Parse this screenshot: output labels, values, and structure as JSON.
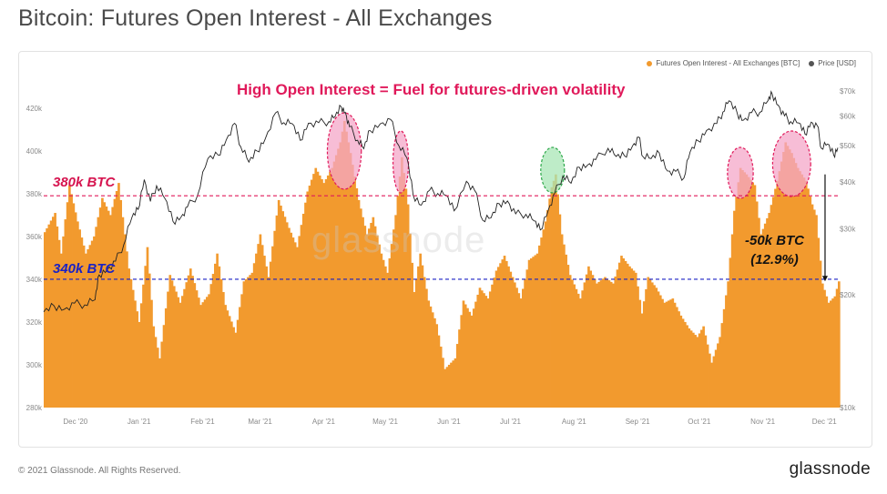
{
  "page": {
    "title": "Bitcoin: Futures Open Interest - All Exchanges",
    "copyright": "© 2021 Glassnode. All Rights Reserved.",
    "brand": "glassnode",
    "watermark": "glassnode"
  },
  "legend": {
    "oi_label": "Futures Open Interest - All Exchanges [BTC]",
    "price_label": "Price [USD]",
    "oi_color": "#f29a2e",
    "price_color": "#555555"
  },
  "annotations": {
    "headline": "High Open Interest = Fuel for futures-driven volatility",
    "level_380": "380k BTC",
    "level_340": "340k BTC",
    "drop_line1": "-50k BTC",
    "drop_line2": "(12.9%)"
  },
  "colors": {
    "bars": "#f29a2e",
    "price_line": "#222222",
    "headline": "#e0195a",
    "line_380": "#e0195a",
    "line_340": "#1a22c4",
    "highlight_pink": "#f4a7c8",
    "highlight_green": "#a8e6b5"
  },
  "chart_data": {
    "type": "bar",
    "x_axis": {
      "tick_labels": [
        "Dec '20",
        "Jan '21",
        "Feb '21",
        "Mar '21",
        "Apr '21",
        "May '21",
        "Jun '21",
        "Jul '21",
        "Aug '21",
        "Sep '21",
        "Oct '21",
        "Nov '21",
        "Dec '21"
      ],
      "tick_dates": [
        "2020-12-01",
        "2021-01-01",
        "2021-02-01",
        "2021-03-01",
        "2021-04-01",
        "2021-05-01",
        "2021-06-01",
        "2021-07-01",
        "2021-08-01",
        "2021-09-01",
        "2021-10-01",
        "2021-11-01",
        "2021-12-01"
      ],
      "range": [
        "2020-11-20",
        "2021-12-12"
      ]
    },
    "y_left": {
      "tick_labels": [
        "280k",
        "300k",
        "320k",
        "340k",
        "360k",
        "380k",
        "400k",
        "420k"
      ],
      "tick_values": [
        280000,
        300000,
        320000,
        340000,
        360000,
        380000,
        400000,
        420000
      ],
      "range": [
        280000,
        428000
      ]
    },
    "y_right": {
      "scale": "log",
      "tick_labels": [
        "$10k",
        "$20k",
        "$30k",
        "$40k",
        "$50k",
        "$60k",
        "$70k"
      ],
      "tick_values": [
        10000,
        20000,
        30000,
        40000,
        50000,
        60000,
        70000
      ],
      "range": [
        10000,
        70000
      ]
    },
    "reference_lines": [
      {
        "label": "380k BTC",
        "value": 379000
      },
      {
        "label": "340k BTC",
        "value": 340000
      }
    ],
    "series": [
      {
        "name": "Futures Open Interest - All Exchanges [BTC]",
        "type": "area",
        "points": [
          [
            "2020-11-20",
            362000
          ],
          [
            "2020-11-25",
            371000
          ],
          [
            "2020-11-28",
            352000
          ],
          [
            "2020-12-02",
            384000
          ],
          [
            "2020-12-06",
            367000
          ],
          [
            "2020-12-10",
            352000
          ],
          [
            "2020-12-14",
            360000
          ],
          [
            "2020-12-18",
            378000
          ],
          [
            "2020-12-22",
            370000
          ],
          [
            "2020-12-26",
            385000
          ],
          [
            "2020-12-31",
            345000
          ],
          [
            "2021-01-05",
            320000
          ],
          [
            "2021-01-09",
            355000
          ],
          [
            "2021-01-12",
            318000
          ],
          [
            "2021-01-15",
            303000
          ],
          [
            "2021-01-20",
            342000
          ],
          [
            "2021-01-25",
            329000
          ],
          [
            "2021-01-30",
            345000
          ],
          [
            "2021-02-04",
            328000
          ],
          [
            "2021-02-08",
            333000
          ],
          [
            "2021-02-12",
            352000
          ],
          [
            "2021-02-16",
            328000
          ],
          [
            "2021-02-21",
            315000
          ],
          [
            "2021-02-25",
            339000
          ],
          [
            "2021-03-01",
            343000
          ],
          [
            "2021-03-05",
            361000
          ],
          [
            "2021-03-09",
            341000
          ],
          [
            "2021-03-14",
            377000
          ],
          [
            "2021-03-19",
            364000
          ],
          [
            "2021-03-23",
            355000
          ],
          [
            "2021-03-28",
            381000
          ],
          [
            "2021-04-01",
            392000
          ],
          [
            "2021-04-05",
            385000
          ],
          [
            "2021-04-09",
            392000
          ],
          [
            "2021-04-13",
            404000
          ],
          [
            "2021-04-15",
            414000
          ],
          [
            "2021-04-18",
            399000
          ],
          [
            "2021-04-22",
            377000
          ],
          [
            "2021-04-26",
            361000
          ],
          [
            "2021-04-29",
            369000
          ],
          [
            "2021-05-03",
            352000
          ],
          [
            "2021-05-06",
            343000
          ],
          [
            "2021-05-10",
            370000
          ],
          [
            "2021-05-13",
            397000
          ],
          [
            "2021-05-16",
            375000
          ],
          [
            "2021-05-19",
            334000
          ],
          [
            "2021-05-22",
            352000
          ],
          [
            "2021-05-26",
            330000
          ],
          [
            "2021-05-30",
            319000
          ],
          [
            "2021-06-03",
            298000
          ],
          [
            "2021-06-08",
            303000
          ],
          [
            "2021-06-12",
            330000
          ],
          [
            "2021-06-16",
            323000
          ],
          [
            "2021-06-20",
            336000
          ],
          [
            "2021-06-24",
            331000
          ],
          [
            "2021-06-28",
            344000
          ],
          [
            "2021-07-02",
            351000
          ],
          [
            "2021-07-06",
            341000
          ],
          [
            "2021-07-10",
            331000
          ],
          [
            "2021-07-14",
            349000
          ],
          [
            "2021-07-18",
            352000
          ],
          [
            "2021-07-22",
            367000
          ],
          [
            "2021-07-25",
            383000
          ],
          [
            "2021-07-27",
            389000
          ],
          [
            "2021-07-30",
            361000
          ],
          [
            "2021-08-03",
            342000
          ],
          [
            "2021-08-08",
            331000
          ],
          [
            "2021-08-12",
            346000
          ],
          [
            "2021-08-16",
            338000
          ],
          [
            "2021-08-20",
            341000
          ],
          [
            "2021-08-24",
            338000
          ],
          [
            "2021-08-28",
            351000
          ],
          [
            "2021-09-01",
            346000
          ],
          [
            "2021-09-04",
            343000
          ],
          [
            "2021-09-07",
            324000
          ],
          [
            "2021-09-10",
            341000
          ],
          [
            "2021-09-14",
            336000
          ],
          [
            "2021-09-18",
            329000
          ],
          [
            "2021-09-22",
            331000
          ],
          [
            "2021-09-26",
            323000
          ],
          [
            "2021-09-30",
            317000
          ],
          [
            "2021-10-04",
            313000
          ],
          [
            "2021-10-07",
            318000
          ],
          [
            "2021-10-11",
            301000
          ],
          [
            "2021-10-15",
            313000
          ],
          [
            "2021-10-19",
            339000
          ],
          [
            "2021-10-22",
            372000
          ],
          [
            "2021-10-25",
            392000
          ],
          [
            "2021-10-28",
            389000
          ],
          [
            "2021-11-01",
            384000
          ],
          [
            "2021-11-04",
            361000
          ],
          [
            "2021-11-08",
            371000
          ],
          [
            "2021-11-12",
            386000
          ],
          [
            "2021-11-16",
            404000
          ],
          [
            "2021-11-19",
            399000
          ],
          [
            "2021-11-22",
            392000
          ],
          [
            "2021-11-26",
            386000
          ],
          [
            "2021-11-29",
            375000
          ],
          [
            "2021-12-01",
            370000
          ],
          [
            "2021-12-04",
            338000
          ],
          [
            "2021-12-07",
            329000
          ],
          [
            "2021-12-10",
            332000
          ],
          [
            "2021-12-12",
            339000
          ]
        ]
      },
      {
        "name": "Price [USD]",
        "type": "line",
        "points": [
          [
            "2020-11-20",
            18000
          ],
          [
            "2020-11-25",
            18700
          ],
          [
            "2020-11-30",
            18300
          ],
          [
            "2020-12-05",
            19000
          ],
          [
            "2020-12-10",
            18800
          ],
          [
            "2020-12-15",
            19400
          ],
          [
            "2020-12-17",
            22600
          ],
          [
            "2020-12-21",
            23400
          ],
          [
            "2020-12-25",
            24600
          ],
          [
            "2020-12-29",
            27200
          ],
          [
            "2021-01-02",
            32200
          ],
          [
            "2021-01-05",
            33800
          ],
          [
            "2021-01-08",
            40600
          ],
          [
            "2021-01-11",
            35500
          ],
          [
            "2021-01-14",
            39100
          ],
          [
            "2021-01-18",
            36200
          ],
          [
            "2021-01-22",
            31400
          ],
          [
            "2021-01-26",
            32300
          ],
          [
            "2021-01-29",
            34300
          ],
          [
            "2021-02-03",
            36900
          ],
          [
            "2021-02-08",
            46200
          ],
          [
            "2021-02-13",
            47200
          ],
          [
            "2021-02-17",
            51900
          ],
          [
            "2021-02-21",
            57400
          ],
          [
            "2021-02-24",
            49700
          ],
          [
            "2021-02-28",
            45200
          ],
          [
            "2021-03-04",
            48400
          ],
          [
            "2021-03-08",
            52200
          ],
          [
            "2021-03-13",
            61200
          ],
          [
            "2021-03-17",
            57600
          ],
          [
            "2021-03-21",
            57300
          ],
          [
            "2021-03-25",
            51700
          ],
          [
            "2021-03-29",
            57400
          ],
          [
            "2021-04-03",
            57600
          ],
          [
            "2021-04-08",
            58000
          ],
          [
            "2021-04-11",
            59800
          ],
          [
            "2021-04-14",
            63500
          ],
          [
            "2021-04-16",
            61400
          ],
          [
            "2021-04-18",
            56200
          ],
          [
            "2021-04-22",
            51700
          ],
          [
            "2021-04-25",
            49100
          ],
          [
            "2021-04-28",
            54900
          ],
          [
            "2021-05-03",
            57200
          ],
          [
            "2021-05-08",
            58800
          ],
          [
            "2021-05-12",
            50100
          ],
          [
            "2021-05-16",
            46400
          ],
          [
            "2021-05-19",
            37000
          ],
          [
            "2021-05-23",
            34700
          ],
          [
            "2021-05-27",
            38000
          ],
          [
            "2021-05-31",
            37300
          ],
          [
            "2021-06-04",
            36900
          ],
          [
            "2021-06-08",
            33500
          ],
          [
            "2021-06-14",
            40200
          ],
          [
            "2021-06-18",
            38000
          ],
          [
            "2021-06-22",
            31600
          ],
          [
            "2021-06-26",
            32100
          ],
          [
            "2021-06-30",
            35000
          ],
          [
            "2021-07-04",
            35600
          ],
          [
            "2021-07-08",
            32900
          ],
          [
            "2021-07-13",
            32800
          ],
          [
            "2021-07-17",
            31500
          ],
          [
            "2021-07-20",
            29800
          ],
          [
            "2021-07-24",
            33800
          ],
          [
            "2021-07-27",
            37300
          ],
          [
            "2021-07-31",
            41500
          ],
          [
            "2021-08-04",
            39700
          ],
          [
            "2021-08-08",
            43800
          ],
          [
            "2021-08-12",
            44400
          ],
          [
            "2021-08-16",
            45900
          ],
          [
            "2021-08-22",
            49200
          ],
          [
            "2021-08-26",
            46800
          ],
          [
            "2021-08-30",
            47000
          ],
          [
            "2021-09-03",
            50000
          ],
          [
            "2021-09-06",
            52700
          ],
          [
            "2021-09-08",
            46800
          ],
          [
            "2021-09-12",
            46200
          ],
          [
            "2021-09-16",
            47800
          ],
          [
            "2021-09-20",
            42800
          ],
          [
            "2021-09-24",
            42700
          ],
          [
            "2021-09-28",
            41000
          ],
          [
            "2021-10-01",
            48100
          ],
          [
            "2021-10-05",
            51500
          ],
          [
            "2021-10-09",
            54900
          ],
          [
            "2021-10-14",
            57300
          ],
          [
            "2021-10-17",
            61500
          ],
          [
            "2021-10-20",
            65900
          ],
          [
            "2021-10-24",
            61000
          ],
          [
            "2021-10-27",
            58500
          ],
          [
            "2021-10-31",
            61300
          ],
          [
            "2021-11-04",
            61400
          ],
          [
            "2021-11-08",
            66000
          ],
          [
            "2021-11-10",
            68800
          ],
          [
            "2021-11-13",
            64100
          ],
          [
            "2021-11-16",
            60100
          ],
          [
            "2021-11-19",
            58000
          ],
          [
            "2021-11-23",
            57500
          ],
          [
            "2021-11-26",
            53700
          ],
          [
            "2021-11-29",
            57800
          ],
          [
            "2021-12-02",
            56500
          ],
          [
            "2021-12-04",
            49200
          ],
          [
            "2021-12-07",
            50500
          ],
          [
            "2021-12-10",
            47200
          ],
          [
            "2021-12-12",
            49400
          ]
        ]
      }
    ],
    "highlights": [
      {
        "color": "pink",
        "from": "2021-04-09",
        "to": "2021-04-22"
      },
      {
        "color": "pink",
        "from": "2021-05-11",
        "to": "2021-05-15"
      },
      {
        "color": "green",
        "from": "2021-07-22",
        "to": "2021-07-30"
      },
      {
        "color": "pink",
        "from": "2021-10-21",
        "to": "2021-10-30"
      },
      {
        "color": "pink",
        "from": "2021-11-12",
        "to": "2021-11-27"
      }
    ],
    "drop_annotation": {
      "from_value": 389000,
      "to_value": 339000,
      "date": "2021-12-04"
    }
  }
}
